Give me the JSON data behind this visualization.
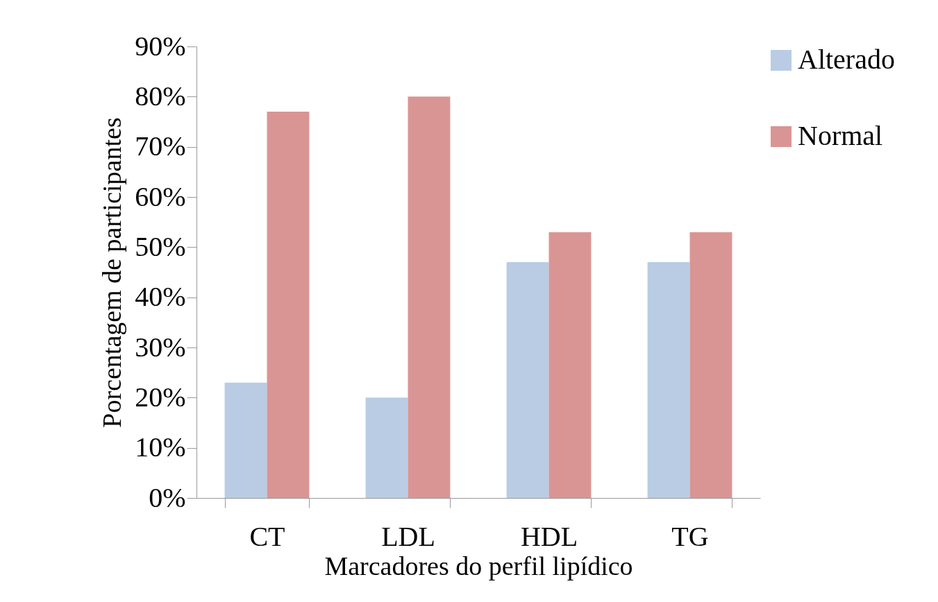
{
  "chart_data": {
    "type": "bar",
    "xlabel": "Marcadores do perfil lipídico",
    "ylabel": "Porcentagem de participantes",
    "categories": [
      "CT",
      "LDL",
      "HDL",
      "TG"
    ],
    "series": [
      {
        "name": "Alterado",
        "color": "#b9cce4",
        "values": [
          23,
          20,
          47,
          47
        ]
      },
      {
        "name": "Normal",
        "color": "#d99594",
        "values": [
          77,
          80,
          53,
          53
        ]
      }
    ],
    "ylim": [
      0,
      90
    ],
    "yticks": [
      {
        "value": 0,
        "label": "0%"
      },
      {
        "value": 10,
        "label": "10%"
      },
      {
        "value": 20,
        "label": "20%"
      },
      {
        "value": 30,
        "label": "30%"
      },
      {
        "value": 40,
        "label": "40%"
      },
      {
        "value": 50,
        "label": "50%"
      },
      {
        "value": 60,
        "label": "60%"
      },
      {
        "value": 70,
        "label": "70%"
      },
      {
        "value": 80,
        "label": "80%"
      },
      {
        "value": 90,
        "label": "90%"
      }
    ],
    "grid": false,
    "legend": "right"
  }
}
